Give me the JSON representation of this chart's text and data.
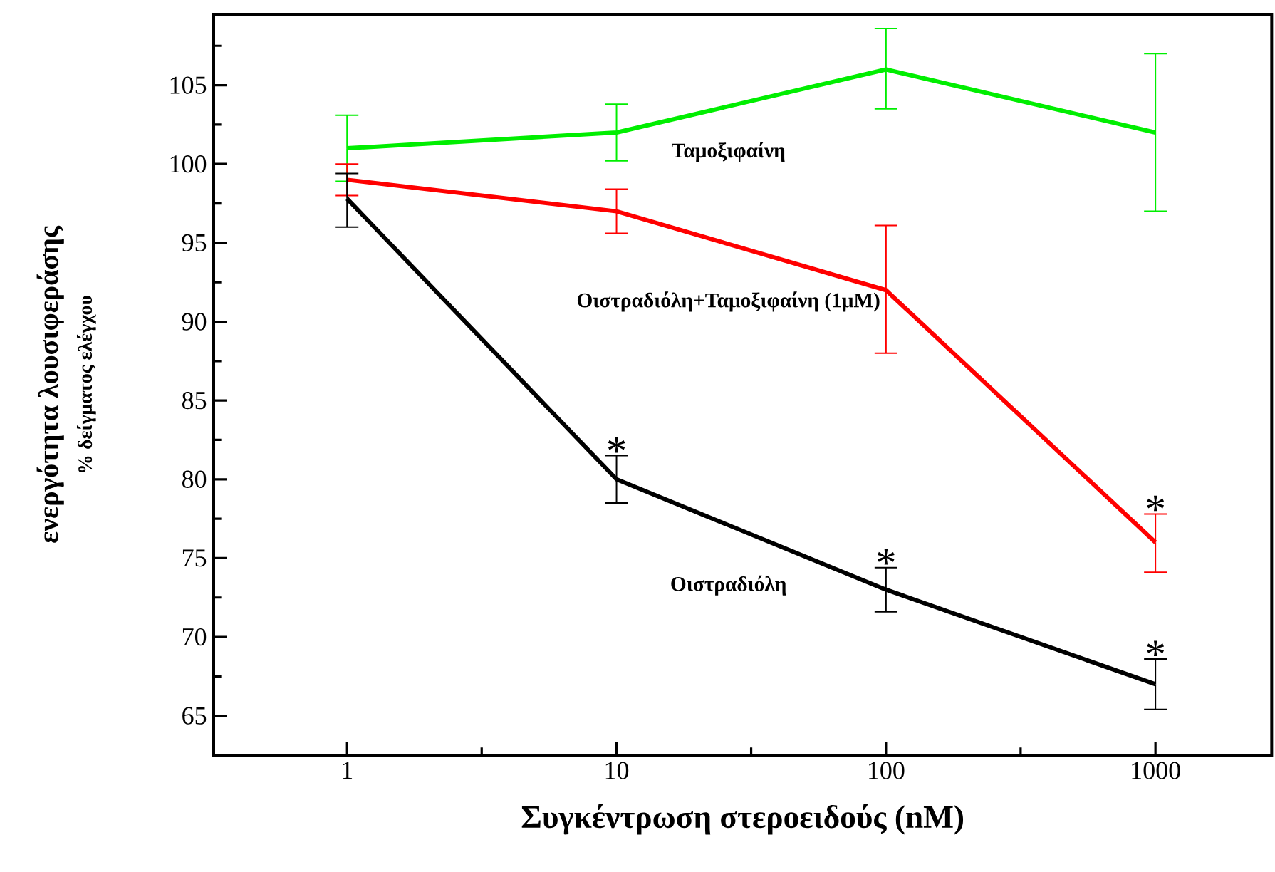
{
  "chart_data": {
    "type": "line",
    "xlabel": "Συγκέντρωση στεροειδούς (nM)",
    "ylabel": "ενεργότητα λουσιφεράσης",
    "log": "x",
    "x": [
      1,
      10,
      100,
      1000
    ],
    "xlim": [
      0.32,
      2700
    ],
    "ylim": [
      62.5,
      109.5
    ],
    "xticks": [
      1,
      10,
      100,
      1000,
      {
        "value": 3.16,
        "label": null
      },
      {
        "value": 31.6,
        "label": null
      },
      {
        "value": 316,
        "label": null
      }
    ],
    "yticks": [
      65,
      70,
      75,
      80,
      85,
      90,
      95,
      100,
      105,
      {
        "value": 67.5,
        "label": null
      },
      {
        "value": 72.5,
        "label": null
      },
      {
        "value": 77.5,
        "label": null
      },
      {
        "value": 82.5,
        "label": null
      },
      {
        "value": 87.5,
        "label": null
      },
      {
        "value": 92.5,
        "label": null
      },
      {
        "value": 97.5,
        "label": null
      },
      {
        "value": 102.5,
        "label": null
      },
      {
        "value": 107.5,
        "label": null
      }
    ],
    "grid": false,
    "legend": false,
    "marker": "none",
    "line_style": "solid",
    "series": [
      {
        "name": "Ταμοξιφαίνη",
        "color": "#00ee00",
        "values": [
          101,
          102,
          106,
          102
        ],
        "errors": [
          [
            98.9,
            103.1
          ],
          [
            100.2,
            103.8
          ],
          [
            103.5,
            108.6
          ],
          [
            97,
            107
          ]
        ]
      },
      {
        "name": "Οιστραδιόλη+Ταμοξιφαίνη (1μΜ)",
        "color": "#ff0000",
        "values": [
          99,
          97,
          92,
          76
        ],
        "errors": [
          [
            98,
            100
          ],
          [
            95.6,
            98.4
          ],
          [
            88,
            96.1
          ],
          [
            74.1,
            77.8
          ]
        ]
      },
      {
        "name": "Οιστραδιόλη",
        "color": "#000000",
        "values": [
          97.8,
          80,
          73,
          67
        ],
        "errors": [
          [
            96,
            99.4
          ],
          [
            78.5,
            81.5
          ],
          [
            71.6,
            74.4
          ],
          [
            65.4,
            68.6
          ]
        ]
      }
    ],
    "annotations": [
      "% δείγματος ελέγχου",
      {
        "text": "*",
        "x": 10,
        "y": 81.5
      },
      {
        "text": "*",
        "x": 100,
        "y": 74.4
      },
      {
        "text": "*",
        "x": 1000,
        "y": 68.6
      },
      {
        "text": "*",
        "x": 1000,
        "y": 77.8
      }
    ]
  }
}
